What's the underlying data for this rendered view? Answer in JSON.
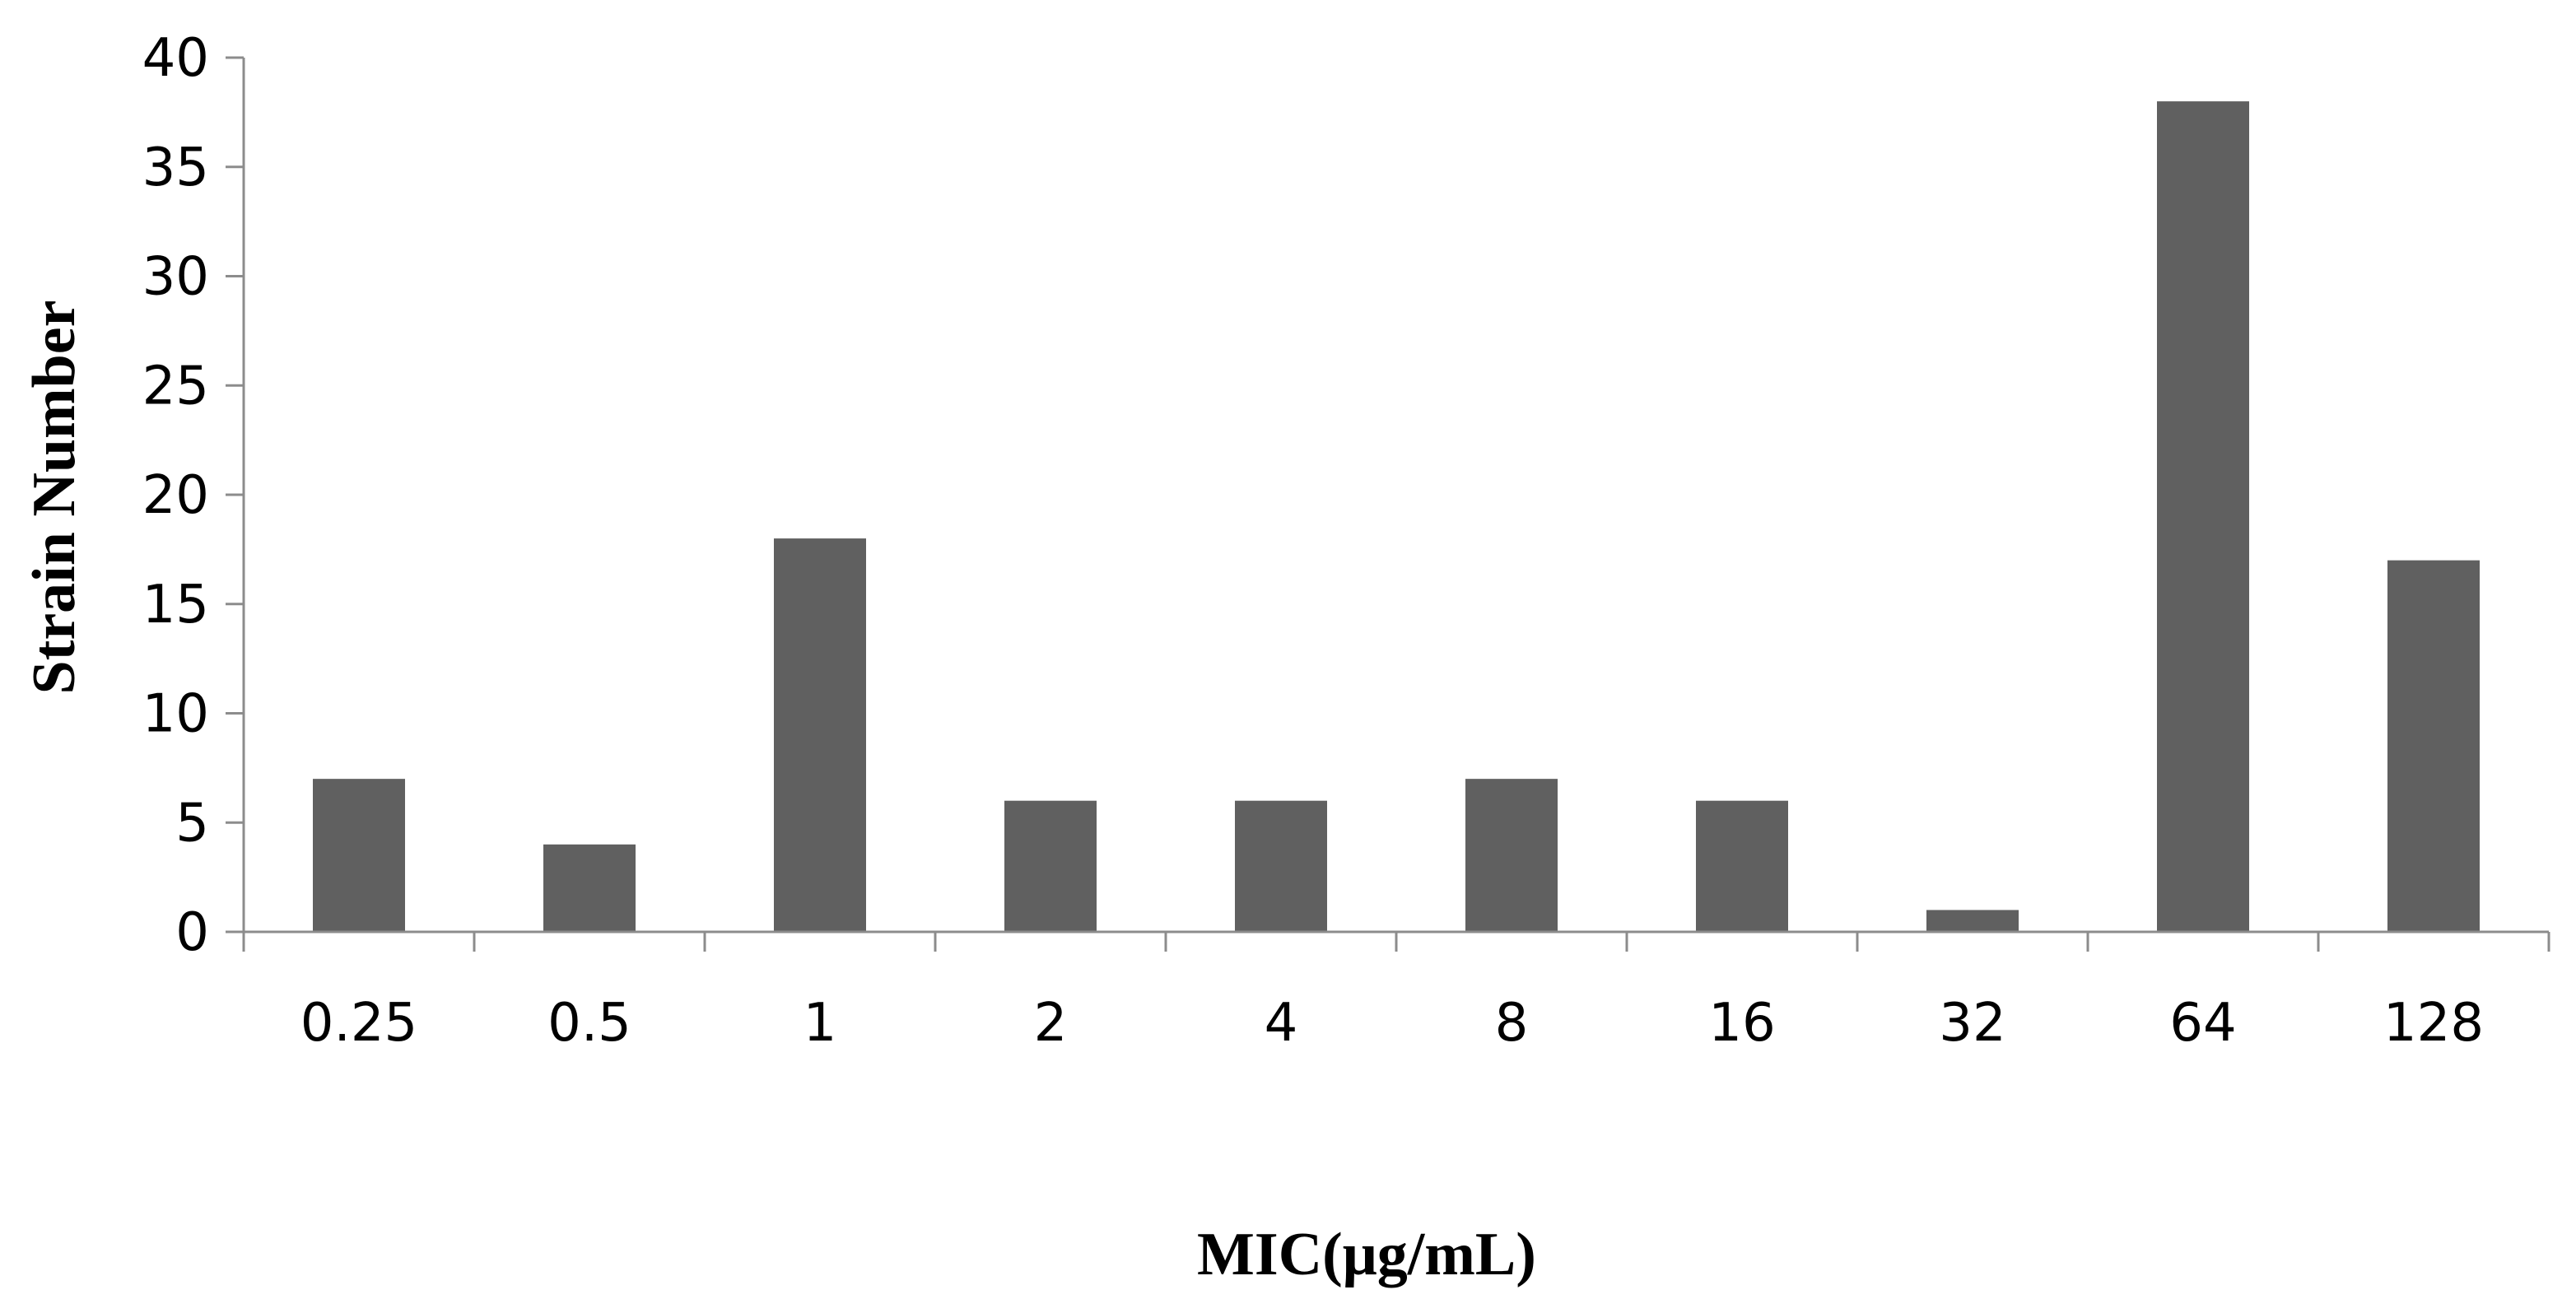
{
  "chart_data": {
    "type": "bar",
    "categories": [
      "0.25",
      "0.5",
      "1",
      "2",
      "4",
      "8",
      "16",
      "32",
      "64",
      "128"
    ],
    "values": [
      7,
      4,
      18,
      6,
      6,
      7,
      6,
      1,
      38,
      17
    ],
    "xlabel": "MIC(μg/mL)",
    "ylabel": "Strain Number",
    "ylim": [
      0,
      40
    ],
    "yticks": [
      "0",
      "5",
      "10",
      "15",
      "20",
      "25",
      "30",
      "35",
      "40"
    ],
    "grid": false,
    "legend": "none",
    "bar_color": "#606060",
    "axis_color": "#8c8c8c"
  }
}
